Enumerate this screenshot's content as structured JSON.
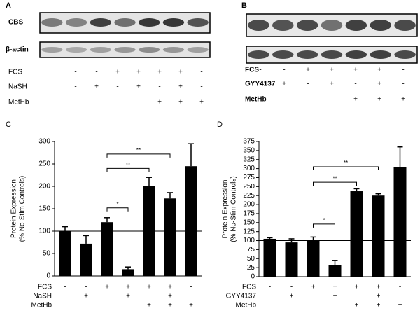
{
  "blots": [
    {
      "label": "A",
      "rows": [
        "CBS",
        "β-actin"
      ],
      "treatments": [
        {
          "name": "FCS",
          "signs": [
            "-",
            "-",
            "+",
            "+",
            "+",
            "+",
            "-"
          ]
        },
        {
          "name": "NaSH",
          "signs": [
            "-",
            "+",
            "-",
            "+",
            "-",
            "+",
            "-"
          ]
        },
        {
          "name": "MetHb",
          "signs": [
            "-",
            "-",
            "-",
            "-",
            "+",
            "+",
            "+"
          ]
        }
      ]
    },
    {
      "label": "B",
      "treatments": [
        {
          "name": "FCS",
          "signs": [
            "-",
            "-",
            "+",
            "+",
            "+",
            "+",
            "-"
          ]
        },
        {
          "name": "GYY4137",
          "signs": [
            "-",
            "+",
            "-",
            "+",
            "-",
            "+",
            "-"
          ]
        },
        {
          "name": "MetHb",
          "signs": [
            "-",
            "-",
            "-",
            "-",
            "+",
            "+",
            "+"
          ]
        }
      ]
    }
  ],
  "chart_data": [
    {
      "type": "bar",
      "label": "C",
      "ylabel": [
        "Protein Expression",
        "(% No-Stim Controls)"
      ],
      "values": [
        100,
        72,
        120,
        15,
        200,
        173,
        245
      ],
      "errors": [
        10,
        18,
        10,
        5,
        20,
        13,
        50
      ],
      "color": "#000000",
      "ylim": [
        0,
        300
      ],
      "yticks": [
        0,
        50,
        100,
        150,
        200,
        250,
        300
      ],
      "reference_line": 100,
      "annotations": [
        {
          "from": 2,
          "to": 3,
          "y": 152,
          "label": "*"
        },
        {
          "from": 2,
          "to": 4,
          "y": 240,
          "label": "**"
        },
        {
          "from": 2,
          "to": 5,
          "y": 272,
          "label": "**"
        }
      ],
      "treatments": [
        {
          "name": "FCS",
          "signs": [
            "-",
            "-",
            "+",
            "+",
            "+",
            "+",
            "-"
          ]
        },
        {
          "name": "NaSH",
          "signs": [
            "-",
            "+",
            "-",
            "+",
            "-",
            "+",
            "-"
          ]
        },
        {
          "name": "MetHb",
          "signs": [
            "-",
            "-",
            "-",
            "-",
            "+",
            "+",
            "+"
          ]
        }
      ]
    },
    {
      "type": "bar",
      "label": "D",
      "ylabel": [
        "Protein Expression",
        "(% No-Stim Controls)"
      ],
      "values": [
        105,
        95,
        100,
        33,
        237,
        225,
        305
      ],
      "errors": [
        3,
        10,
        10,
        12,
        7,
        5,
        55
      ],
      "color": "#000000",
      "ylim": [
        0,
        375
      ],
      "yticks": [
        0,
        25,
        50,
        75,
        100,
        125,
        150,
        175,
        200,
        225,
        250,
        275,
        300,
        325,
        350,
        375
      ],
      "reference_line": 100,
      "annotations": [
        {
          "from": 2,
          "to": 3,
          "y": 146,
          "label": "*"
        },
        {
          "from": 2,
          "to": 4,
          "y": 262,
          "label": "**"
        },
        {
          "from": 2,
          "to": 5,
          "y": 305,
          "label": "**"
        }
      ],
      "treatments": [
        {
          "name": "FCS",
          "signs": [
            "-",
            "-",
            "+",
            "+",
            "+",
            "+",
            "-"
          ]
        },
        {
          "name": "GYY4137",
          "signs": [
            "-",
            "+",
            "-",
            "+",
            "-",
            "+",
            "-"
          ]
        },
        {
          "name": "MetHb",
          "signs": [
            "-",
            "-",
            "-",
            "-",
            "+",
            "+",
            "+"
          ]
        }
      ]
    }
  ]
}
